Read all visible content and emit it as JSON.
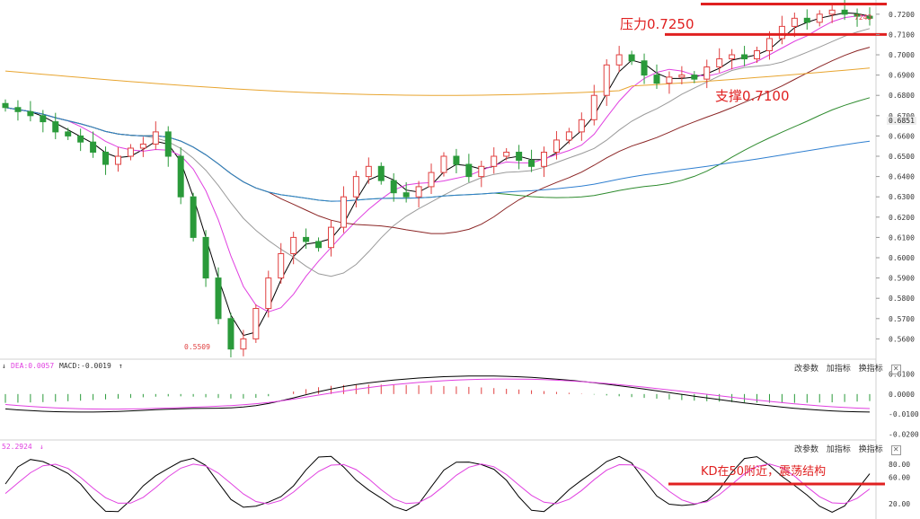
{
  "colors": {
    "up": "#e04040",
    "down": "#2a9a3a",
    "annotation": "#e02020",
    "ma5": "#000000",
    "ma10": "#e040e0",
    "ma20": "#9a9a9a",
    "ma60": "#8b2525",
    "ma120": "#2e8b2e",
    "ma250": "#2f7fd0",
    "ma500": "#e8a530",
    "kd_k": "#000000",
    "kd_d": "#e040e0"
  },
  "price_axis": {
    "ticks": [
      "0.7200",
      "0.7100",
      "0.7000",
      "0.6900",
      "0.6800",
      "0.6700",
      "0.6600",
      "0.6500",
      "0.6400",
      "0.6300",
      "0.6200",
      "0.6100",
      "0.6000",
      "0.5900",
      "0.5800",
      "0.5700",
      "0.5600"
    ],
    "current_price": "0.6851"
  },
  "macd_axis": {
    "ticks": [
      "0.0100",
      "0.0000",
      "-0.0100",
      "-0.0200"
    ]
  },
  "kd_axis": {
    "ticks": [
      "80.00",
      "60.00",
      "20.00"
    ]
  },
  "annotations": {
    "resistance_label": "压力0.7250",
    "support_label": "支撑0.7100",
    "kd_label": "KD在50附近，震荡结构",
    "low_label": "0.5509",
    "high_label": "7243"
  },
  "macd_panel": {
    "dea_label": "DEA:0.0057",
    "macd_label": "MACD:-0.0019"
  },
  "kd_panel": {
    "value_label": "52.2924"
  },
  "toolbar": {
    "params": "改参数",
    "add": "加指标",
    "swap": "换指标",
    "close": "✕"
  },
  "chart_data": {
    "type": "candlestick",
    "price_range": [
      0.55,
      0.727
    ],
    "resistance": 0.725,
    "support": 0.71,
    "close": [
      0.674,
      0.672,
      0.67,
      0.667,
      0.662,
      0.66,
      0.657,
      0.652,
      0.646,
      0.65,
      0.654,
      0.656,
      0.662,
      0.65,
      0.63,
      0.61,
      0.59,
      0.57,
      0.555,
      0.56,
      0.575,
      0.59,
      0.602,
      0.61,
      0.608,
      0.605,
      0.615,
      0.63,
      0.64,
      0.645,
      0.638,
      0.632,
      0.63,
      0.635,
      0.642,
      0.65,
      0.646,
      0.64,
      0.645,
      0.65,
      0.652,
      0.648,
      0.645,
      0.652,
      0.658,
      0.662,
      0.668,
      0.68,
      0.695,
      0.7,
      0.697,
      0.69,
      0.686,
      0.689,
      0.69,
      0.688,
      0.694,
      0.698,
      0.7,
      0.698,
      0.702,
      0.708,
      0.714,
      0.718,
      0.716,
      0.72,
      0.722,
      0.72,
      0.719,
      0.718
    ]
  }
}
